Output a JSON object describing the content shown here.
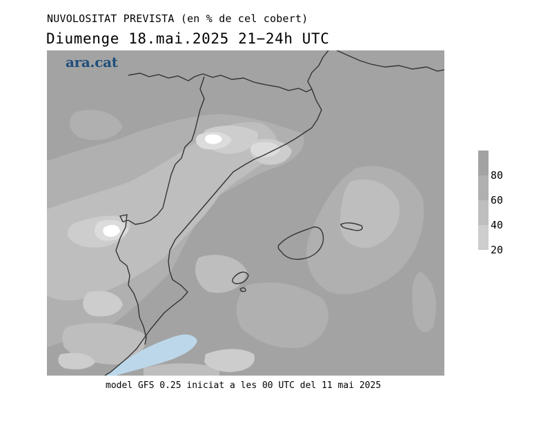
{
  "title": "NUVOLOSITAT PREVISTA (en % de cel cobert)",
  "subtitle": "Diumenge  18.mai.2025 21−24h UTC",
  "logo": "ara.cat",
  "footer": "model GFS 0.25 iniciat a les 00 UTC del 11 mai 2025",
  "legend": {
    "bins": [
      {
        "label": "",
        "color": "#a3a3a3"
      },
      {
        "label": "80",
        "color": "#b0b0b0"
      },
      {
        "label": "60",
        "color": "#bebebe"
      },
      {
        "label": "40",
        "color": "#cdcdcd"
      },
      {
        "label": "20",
        "color": "#dcdcdc"
      }
    ]
  },
  "colors": {
    "cloud_100": "#a3a3a3",
    "cloud_80": "#b0b0b0",
    "cloud_60": "#bebebe",
    "cloud_40": "#cdcdcd",
    "cloud_20": "#dcdcdc",
    "clear": "#ffffff",
    "rain_blue": "#bcd7ea",
    "borders": "#333333"
  }
}
